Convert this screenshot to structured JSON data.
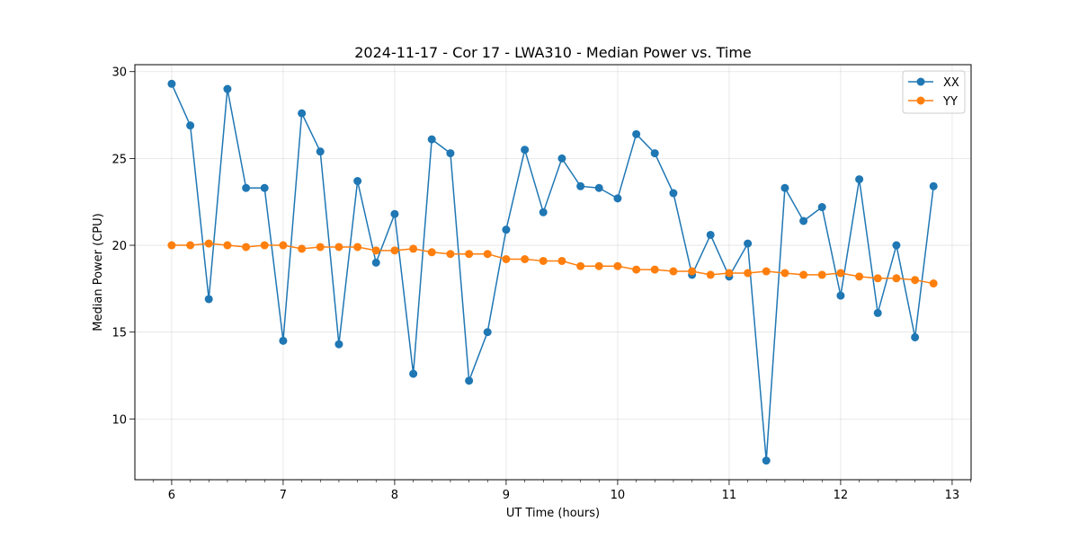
{
  "chart_data": {
    "type": "line",
    "title": "2024-11-17 - Cor 17 - LWA310 - Median Power vs. Time",
    "xlabel": "UT Time (hours)",
    "ylabel": "Median Power (CPU)",
    "xlim": [
      5.67,
      13.17
    ],
    "ylim": [
      6.5,
      30.4
    ],
    "xticks": [
      6,
      7,
      8,
      9,
      10,
      11,
      12,
      13
    ],
    "yticks": [
      10,
      15,
      20,
      25,
      30
    ],
    "grid": true,
    "legend_position": "top-right",
    "x": [
      6.0,
      6.167,
      6.333,
      6.5,
      6.667,
      6.833,
      7.0,
      7.167,
      7.333,
      7.5,
      7.667,
      7.833,
      8.0,
      8.167,
      8.333,
      8.5,
      8.667,
      8.833,
      9.0,
      9.167,
      9.333,
      9.5,
      9.667,
      9.833,
      10.0,
      10.167,
      10.333,
      10.5,
      10.667,
      10.833,
      11.0,
      11.167,
      11.333,
      11.5,
      11.667,
      11.833,
      12.0,
      12.167,
      12.333,
      12.5,
      12.667,
      12.833
    ],
    "series": [
      {
        "name": "XX",
        "color": "#1f77b4",
        "values": [
          29.3,
          26.9,
          16.9,
          29.0,
          23.3,
          23.3,
          14.5,
          27.6,
          25.4,
          14.3,
          23.7,
          19.0,
          21.8,
          12.6,
          26.1,
          25.3,
          12.2,
          15.0,
          20.9,
          25.5,
          21.9,
          25.0,
          23.4,
          23.3,
          22.7,
          26.4,
          25.3,
          23.0,
          18.3,
          20.6,
          18.2,
          20.1,
          7.6,
          23.3,
          21.4,
          22.2,
          17.1,
          23.8,
          16.1,
          20.0,
          14.7,
          23.4
        ]
      },
      {
        "name": "YY",
        "color": "#ff7f0e",
        "values": [
          20.0,
          20.0,
          20.1,
          20.0,
          19.9,
          20.0,
          20.0,
          19.8,
          19.9,
          19.9,
          19.9,
          19.7,
          19.7,
          19.8,
          19.6,
          19.5,
          19.5,
          19.5,
          19.2,
          19.2,
          19.1,
          19.1,
          18.8,
          18.8,
          18.8,
          18.6,
          18.6,
          18.5,
          18.5,
          18.3,
          18.4,
          18.4,
          18.5,
          18.4,
          18.3,
          18.3,
          18.4,
          18.2,
          18.1,
          18.1,
          18.0,
          17.8
        ]
      }
    ]
  }
}
